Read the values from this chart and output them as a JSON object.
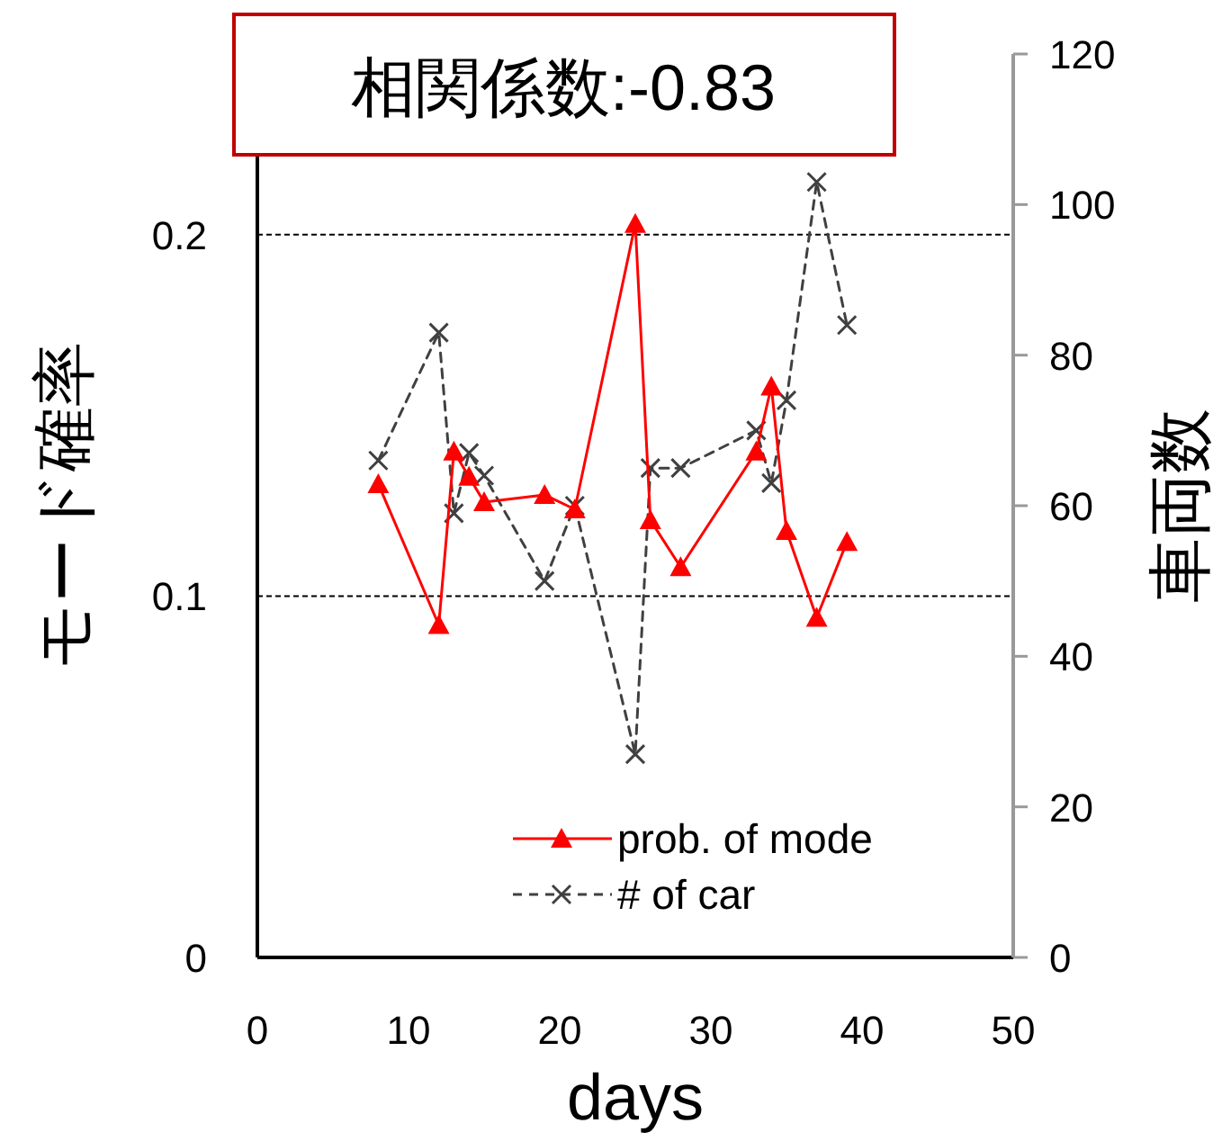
{
  "chart_data": {
    "type": "line",
    "xlabel": "days",
    "ylabel": "モード確率",
    "y2label": "車両数",
    "annotations": [
      "相関係数:-0.83"
    ],
    "xlim": [
      0,
      50
    ],
    "xticks": [
      0,
      10,
      20,
      30,
      40,
      50
    ],
    "ylim": [
      0,
      0.25
    ],
    "yticks": [
      0,
      0.1,
      0.2
    ],
    "y2lim": [
      0,
      120
    ],
    "y2ticks": [
      0,
      20,
      40,
      60,
      80,
      100,
      120
    ],
    "grid": "y",
    "legend": "bottom",
    "series": [
      {
        "name": "prob. of mode",
        "color": "#ff0000",
        "marker": "triangle",
        "line_style": "solid",
        "x": [
          8,
          12,
          13,
          14,
          15,
          19,
          21,
          25,
          26,
          28,
          33,
          34,
          35,
          37,
          39
        ],
        "values": [
          0.131,
          0.092,
          0.14,
          0.133,
          0.126,
          0.128,
          0.124,
          0.203,
          0.121,
          0.108,
          0.14,
          0.158,
          0.118,
          0.094,
          0.115
        ]
      },
      {
        "name": "# of car",
        "color": "#404040",
        "marker": "cross",
        "line_style": "dashed",
        "axis": "y2",
        "x": [
          8,
          12,
          13,
          14,
          15,
          19,
          21,
          25,
          26,
          28,
          33,
          34,
          35,
          37,
          39
        ],
        "values": [
          66,
          83,
          59,
          67,
          64,
          50,
          60,
          27,
          65,
          65,
          70,
          63,
          74,
          103,
          84
        ]
      }
    ]
  }
}
